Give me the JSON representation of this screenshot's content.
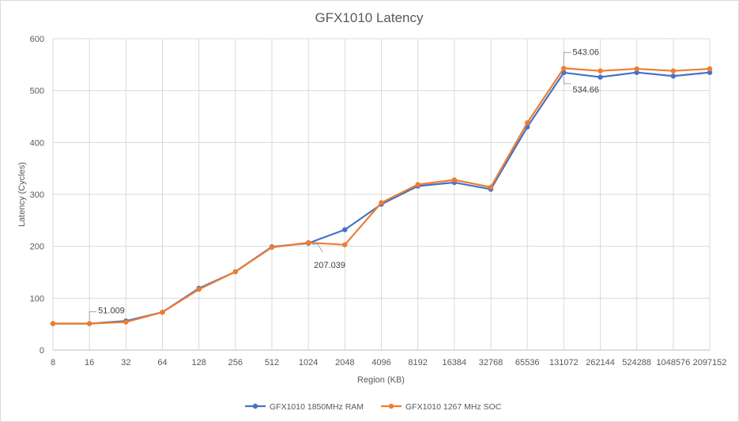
{
  "chart_data": {
    "type": "line",
    "title": "GFX1010 Latency",
    "xlabel": "Region (KB)",
    "ylabel": "Latency (Cycles)",
    "categories": [
      "8",
      "16",
      "32",
      "64",
      "128",
      "256",
      "512",
      "1024",
      "2048",
      "4096",
      "8192",
      "16384",
      "32768",
      "65536",
      "131072",
      "262144",
      "524288",
      "1048576",
      "2097152"
    ],
    "ylim": [
      0,
      600
    ],
    "yticks": [
      0,
      100,
      200,
      300,
      400,
      500,
      600
    ],
    "grid": true,
    "legend_position": "bottom",
    "series": [
      {
        "name": "GFX1010 1850MHz RAM",
        "color": "#4472C4",
        "values": [
          51,
          51.009,
          56,
          73,
          119,
          151,
          199,
          206,
          232,
          281,
          316,
          323,
          310,
          430,
          534.66,
          526,
          535,
          528,
          535
        ]
      },
      {
        "name": "GFX1010 1267 MHz SOC",
        "color": "#ED7D31",
        "values": [
          51,
          51,
          54,
          73,
          117,
          151,
          198,
          207.039,
          203,
          284,
          319,
          328,
          314,
          438,
          543.06,
          538,
          542,
          538,
          542
        ]
      }
    ],
    "annotations": [
      {
        "text": "51.009",
        "category": "16",
        "value": 51.009
      },
      {
        "text": "207.039",
        "category": "1024",
        "value": 207.039
      },
      {
        "text": "543.06",
        "category": "131072",
        "value": 543.06
      },
      {
        "text": "534.66",
        "category": "131072",
        "value": 534.66
      }
    ]
  }
}
